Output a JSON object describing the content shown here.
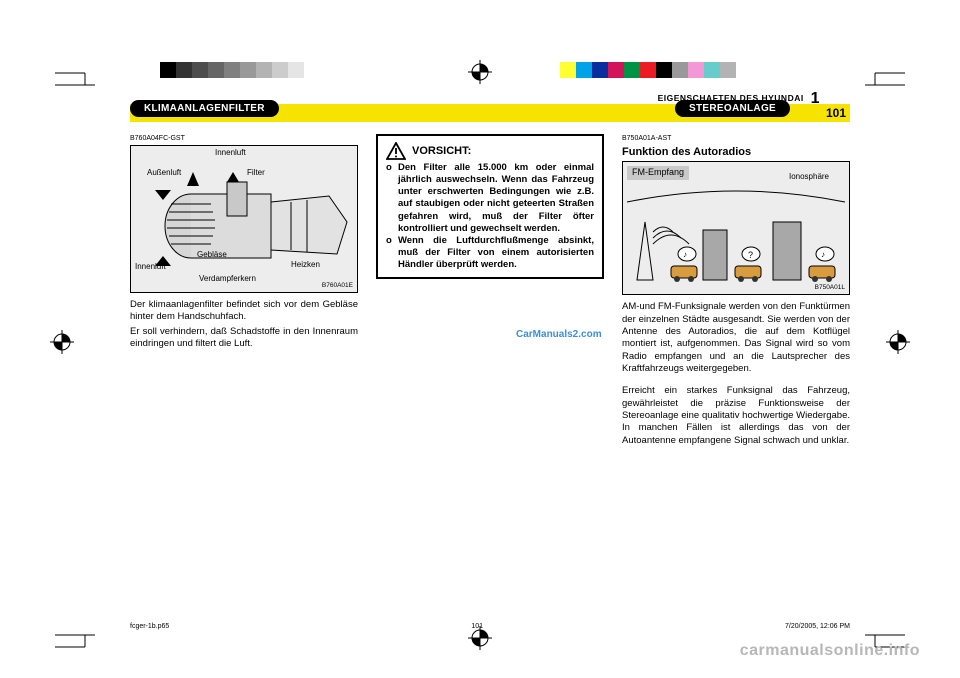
{
  "colors": {
    "yellow": "#f6e300",
    "black": "#000000",
    "white": "#ffffff",
    "fig_bg": "#ededed",
    "fm_tag_bg": "#c9c9c9",
    "watermark_blue": "#3b8fd6",
    "watermark_grey": "#b7b7b7",
    "orange": "#d89c3e",
    "building_fill": "#a8a8a8"
  },
  "calibration_bars": {
    "left_swatches": [
      "#000000",
      "#333333",
      "#4d4d4d",
      "#666666",
      "#808080",
      "#999999",
      "#b3b3b3",
      "#cccccc",
      "#e5e5e5",
      "#ffffff"
    ],
    "right_swatches": [
      "#ffff33",
      "#00a2e8",
      "#0a2ea0",
      "#d4145a",
      "#009245",
      "#ed1c24",
      "#000000",
      "#999999",
      "#f497d6",
      "#66cccc",
      "#b3b3b3",
      "#ffffff"
    ]
  },
  "header": {
    "right_small": "EIGENSCHAFTEN  DES  HYUNDAI",
    "right_one": "1",
    "pill_left": "KLIMAANLAGENFILTER",
    "pill_right": "STEREOANLAGE",
    "page_number": "101"
  },
  "col1": {
    "figcode": "B760A04FC-GST",
    "labels": {
      "innenluft_top": "Innenluft",
      "aussenluft": "Außenluft",
      "filter": "Filter",
      "geblaese": "Gebläse",
      "innenluft_left": "Innenluft",
      "heizken": "Heizken",
      "verdampferkern": "Verdampferkern"
    },
    "fig_credit": "B760A01E",
    "para1": "Der klimaanlagenfilter befindet sich vor dem Gebläse hinter dem Handschuhfach.",
    "para2": "Er soll verhindern, daß Schadstoffe in den Innenraum eindringen und filtert die Luft."
  },
  "col2": {
    "warn_title": "VORSICHT:",
    "items": [
      "Den Filter alle 15.000 km oder einmal jährlich auswechseln. Wenn das Fahrzeug unter erschwerten Bedingungen wie z.B. auf staubigen oder nicht geteerten Straßen gefahren wird, muß der Filter öfter kontrolliert und gewechselt werden.",
      "Wenn die Luftdurchflußmenge absinkt, muß der Filter von einem autorisierten Händler überprüft werden."
    ],
    "watermark": "CarManuals2.com"
  },
  "col3": {
    "figcode": "B750A01A-AST",
    "title": "Funktion des Autoradios",
    "fm_tag": "FM-Empfang",
    "iono_label": "Ionosphäre",
    "fig_credit": "B750A01L",
    "para1": "AM-und FM-Funksignale werden von den Funktürmen der einzelnen Städte ausgesandt. Sie werden von der Antenne des Autoradios, die auf dem Kotflügel montiert ist, aufgenommen. Das Signal wird so vom Radio empfangen und an die Lautsprecher des Kraftfahrzeugs weitergegeben.",
    "para2": "Erreicht ein starkes Funksignal das Fahrzeug, gewährleistet die präzise Funktionsweise der Stereoanlage eine qualitativ hochwertige Wiedergabe. In manchen Fällen ist allerdings das von der Autoantenne empfangene Signal schwach und unklar."
  },
  "footer": {
    "left": "fcger-1b.p65",
    "mid": "101",
    "right": "7/20/2005, 12:06 PM"
  },
  "watermark_bottom": "carmanualsonline.info"
}
